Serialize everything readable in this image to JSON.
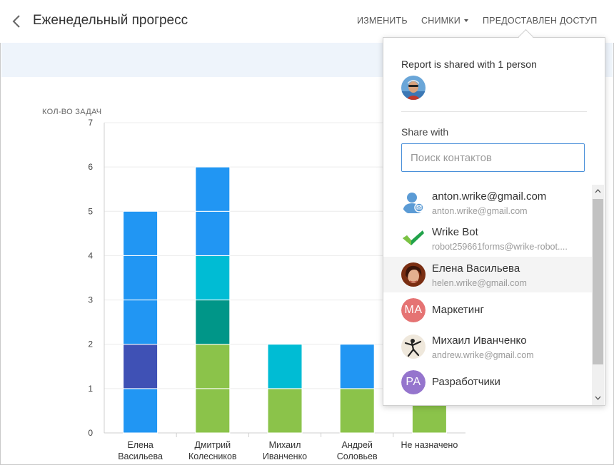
{
  "header": {
    "title": "Еженедельный прогресс",
    "nav": {
      "edit": "ИЗМЕНИТЬ",
      "snapshots": "СНИМКИ",
      "access": "ПРЕДОСТАВЛЕН ДОСТУП"
    }
  },
  "chart_data": {
    "type": "bar",
    "stacked": true,
    "ylabel": "КОЛ-ВО ЗАДАЧ",
    "ylim": [
      0,
      7
    ],
    "yticks": [
      "0",
      "1",
      "2",
      "3",
      "4",
      "5",
      "6",
      "7"
    ],
    "categories": [
      [
        "Елена",
        "Васильева"
      ],
      [
        "Дмитрий",
        "Колесников"
      ],
      [
        "Михаил",
        "Иванченко"
      ],
      [
        "Андрей",
        "Соловьев"
      ],
      [
        "Не назначено"
      ]
    ],
    "series": [
      {
        "color": "#8bc34a",
        "values": [
          0,
          2,
          1,
          1,
          1
        ]
      },
      {
        "color": "#2196f3",
        "values": [
          1,
          0,
          0,
          0,
          0
        ]
      },
      {
        "color": "#3f51b5",
        "values": [
          1,
          0,
          0,
          0,
          0
        ]
      },
      {
        "color": "#009688",
        "values": [
          0,
          1,
          0,
          0,
          0
        ]
      },
      {
        "color": "#00bcd4",
        "values": [
          0,
          1,
          1,
          0,
          0
        ]
      },
      {
        "color": "#2196f3",
        "values": [
          3,
          2,
          0,
          1,
          0
        ]
      }
    ]
  },
  "share": {
    "shared_text": "Report is shared with 1 person",
    "share_with": "Share with",
    "search_placeholder": "Поиск контактов",
    "contacts": [
      {
        "name": "anton.wrike@gmail.com",
        "email": "anton.wrike@gmail.com",
        "avatar": "user-placeholder-icon"
      },
      {
        "name": "Wrike Bot",
        "email": "robot259661forms@wrike-robot....",
        "avatar": "wrike-checkmark-icon"
      },
      {
        "name": "Елена Васильева",
        "email": "helen.wrike@gmail.com",
        "avatar": "photo"
      },
      {
        "name": "Маркетинг",
        "initials": "MA",
        "color": "#e57373"
      },
      {
        "name": "Михаил Иванченко",
        "email": "andrew.wrike@gmail.com",
        "avatar": "photo"
      },
      {
        "name": "Разработчики",
        "initials": "PA",
        "color": "#9575cd"
      }
    ]
  }
}
